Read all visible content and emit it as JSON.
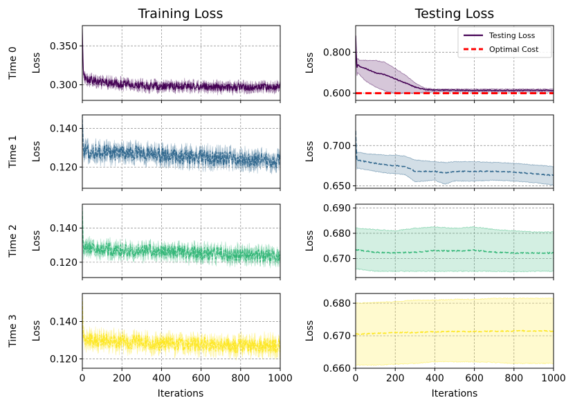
{
  "columns": [
    {
      "title": "Training Loss"
    },
    {
      "title": "Testing Loss"
    }
  ],
  "rows": [
    {
      "label": "Time 0",
      "color": "#440154"
    },
    {
      "label": "Time 1",
      "color": "#31688e"
    },
    {
      "label": "Time 2",
      "color": "#35b779"
    },
    {
      "label": "Time 3",
      "color": "#fde725"
    }
  ],
  "ylabel": "Loss",
  "xlabel": "Iterations",
  "legend": {
    "placement": "top-right",
    "entries": [
      {
        "label": "Testing Loss",
        "color": "#440154",
        "style": "solid"
      },
      {
        "label": "Optimal Cost",
        "color": "#ff0000",
        "style": "dashed"
      }
    ]
  },
  "chart_data": [
    {
      "type": "line",
      "panel": "train-0",
      "row": 0,
      "col": 0,
      "xlim": [
        0,
        1000
      ],
      "ylim": [
        0.28,
        0.376
      ],
      "yticks": [
        0.3,
        0.35
      ],
      "ytick_labels": [
        "0.300",
        "0.350"
      ],
      "xticks": [
        0,
        200,
        400,
        600,
        800,
        1000
      ],
      "xtick_labels": [],
      "grid": true,
      "series": [
        {
          "x": [
            0,
            5,
            10,
            30,
            60,
            100,
            200,
            300,
            400,
            500,
            600,
            700,
            800,
            900,
            1000
          ],
          "y": [
            0.37,
            0.32,
            0.31,
            0.307,
            0.305,
            0.303,
            0.301,
            0.299,
            0.298,
            0.298,
            0.298,
            0.297,
            0.297,
            0.297,
            0.297
          ],
          "band": 0.006,
          "noise": 0.005
        }
      ]
    },
    {
      "type": "line",
      "panel": "test-0",
      "row": 0,
      "col": 1,
      "xlim": [
        0,
        1000
      ],
      "ylim": [
        0.565,
        0.93
      ],
      "yticks": [
        0.6,
        0.8
      ],
      "ytick_labels": [
        "0.600",
        "0.800"
      ],
      "xticks": [
        0,
        200,
        400,
        600,
        800,
        1000
      ],
      "xtick_labels": [],
      "grid": true,
      "optimal_cost": 0.6,
      "series": [
        {
          "name": "Testing Loss",
          "x": [
            0,
            5,
            10,
            20,
            50,
            100,
            150,
            200,
            250,
            300,
            350,
            400,
            500,
            600,
            700,
            800,
            900,
            1000
          ],
          "y": [
            0.88,
            0.72,
            0.74,
            0.73,
            0.72,
            0.7,
            0.69,
            0.67,
            0.65,
            0.63,
            0.618,
            0.615,
            0.615,
            0.614,
            0.614,
            0.614,
            0.614,
            0.614
          ],
          "lower": [
            0.88,
            0.68,
            0.7,
            0.69,
            0.66,
            0.63,
            0.61,
            0.6,
            0.6,
            0.6,
            0.605,
            0.607,
            0.607,
            0.607,
            0.607,
            0.607,
            0.607,
            0.607
          ],
          "upper": [
            0.88,
            0.76,
            0.77,
            0.76,
            0.76,
            0.76,
            0.75,
            0.72,
            0.69,
            0.65,
            0.625,
            0.62,
            0.62,
            0.62,
            0.62,
            0.62,
            0.62,
            0.62
          ],
          "noise": 0.004
        }
      ]
    },
    {
      "type": "line",
      "panel": "train-1",
      "row": 1,
      "col": 0,
      "xlim": [
        0,
        1000
      ],
      "ylim": [
        0.109,
        0.147
      ],
      "yticks": [
        0.12,
        0.14
      ],
      "ytick_labels": [
        "0.120",
        "0.140"
      ],
      "xticks": [
        0,
        200,
        400,
        600,
        800,
        1000
      ],
      "xtick_labels": [],
      "grid": true,
      "series": [
        {
          "x": [
            0,
            5,
            100,
            200,
            300,
            400,
            500,
            600,
            700,
            800,
            900,
            1000
          ],
          "y": [
            0.145,
            0.128,
            0.128,
            0.127,
            0.127,
            0.126,
            0.125,
            0.125,
            0.124,
            0.124,
            0.124,
            0.123
          ],
          "band": 0.004,
          "noise": 0.004
        }
      ]
    },
    {
      "type": "line",
      "panel": "test-1",
      "row": 1,
      "col": 1,
      "xlim": [
        0,
        1000
      ],
      "ylim": [
        0.647,
        0.738
      ],
      "yticks": [
        0.65,
        0.7
      ],
      "ytick_labels": [
        "0.650",
        "0.700"
      ],
      "xticks": [
        0,
        200,
        400,
        600,
        800,
        1000
      ],
      "xtick_labels": [],
      "grid": true,
      "series": [
        {
          "x": [
            0,
            5,
            10,
            50,
            100,
            150,
            200,
            250,
            300,
            400,
            450,
            500,
            600,
            700,
            800,
            900,
            1000
          ],
          "y": [
            0.718,
            0.68,
            0.682,
            0.68,
            0.678,
            0.676,
            0.675,
            0.674,
            0.668,
            0.668,
            0.666,
            0.668,
            0.668,
            0.668,
            0.667,
            0.665,
            0.663
          ],
          "lower": [
            0.718,
            0.67,
            0.672,
            0.67,
            0.668,
            0.666,
            0.665,
            0.664,
            0.655,
            0.657,
            0.652,
            0.656,
            0.656,
            0.657,
            0.656,
            0.654,
            0.651
          ],
          "upper": [
            0.718,
            0.69,
            0.692,
            0.69,
            0.689,
            0.688,
            0.688,
            0.687,
            0.682,
            0.68,
            0.679,
            0.68,
            0.68,
            0.679,
            0.678,
            0.676,
            0.674
          ],
          "noise": 0.001
        }
      ]
    },
    {
      "type": "line",
      "panel": "train-2",
      "row": 2,
      "col": 0,
      "xlim": [
        0,
        1000
      ],
      "ylim": [
        0.111,
        0.154
      ],
      "yticks": [
        0.12,
        0.14
      ],
      "ytick_labels": [
        "0.120",
        "0.140"
      ],
      "xticks": [
        0,
        200,
        400,
        600,
        800,
        1000
      ],
      "xtick_labels": [],
      "grid": true,
      "series": [
        {
          "x": [
            0,
            5,
            100,
            200,
            300,
            400,
            500,
            600,
            700,
            800,
            900,
            1000
          ],
          "y": [
            0.15,
            0.128,
            0.128,
            0.127,
            0.127,
            0.126,
            0.126,
            0.125,
            0.125,
            0.124,
            0.124,
            0.124
          ],
          "band": 0.004,
          "noise": 0.004
        }
      ]
    },
    {
      "type": "line",
      "panel": "test-2",
      "row": 2,
      "col": 1,
      "xlim": [
        0,
        1000
      ],
      "ylim": [
        0.6625,
        0.6915
      ],
      "yticks": [
        0.67,
        0.68,
        0.69
      ],
      "ytick_labels": [
        "0.670",
        "0.680",
        "0.690"
      ],
      "xticks": [
        0,
        200,
        400,
        600,
        800,
        1000
      ],
      "xtick_labels": [],
      "grid": true,
      "series": [
        {
          "x": [
            0,
            100,
            200,
            300,
            400,
            500,
            600,
            700,
            800,
            900,
            1000
          ],
          "y": [
            0.6735,
            0.6725,
            0.6723,
            0.6725,
            0.6732,
            0.673,
            0.6733,
            0.6725,
            0.6722,
            0.6722,
            0.6722
          ],
          "lower": [
            0.666,
            0.665,
            0.665,
            0.665,
            0.665,
            0.665,
            0.665,
            0.665,
            0.6648,
            0.665,
            0.665
          ],
          "upper": [
            0.682,
            0.6815,
            0.681,
            0.682,
            0.6825,
            0.682,
            0.6825,
            0.6815,
            0.681,
            0.6805,
            0.6805
          ],
          "noise": 0.0004
        }
      ]
    },
    {
      "type": "line",
      "panel": "train-3",
      "row": 3,
      "col": 0,
      "xlim": [
        0,
        1000
      ],
      "ylim": [
        0.115,
        0.155
      ],
      "yticks": [
        0.12,
        0.14
      ],
      "ytick_labels": [
        "0.120",
        "0.140"
      ],
      "xticks": [
        0,
        200,
        400,
        600,
        800,
        1000
      ],
      "xtick_labels": [
        "0",
        "200",
        "400",
        "600",
        "800",
        "1000"
      ],
      "grid": true,
      "series": [
        {
          "x": [
            0,
            5,
            100,
            200,
            300,
            400,
            500,
            600,
            700,
            800,
            900,
            1000
          ],
          "y": [
            0.15,
            0.13,
            0.13,
            0.129,
            0.129,
            0.128,
            0.128,
            0.128,
            0.127,
            0.127,
            0.127,
            0.127
          ],
          "band": 0.004,
          "noise": 0.004
        }
      ]
    },
    {
      "type": "line",
      "panel": "test-3",
      "row": 3,
      "col": 1,
      "xlim": [
        0,
        1000
      ],
      "ylim": [
        0.66,
        0.683
      ],
      "yticks": [
        0.66,
        0.67,
        0.68
      ],
      "ytick_labels": [
        "0.660",
        "0.670",
        "0.680"
      ],
      "xticks": [
        0,
        200,
        400,
        600,
        800,
        1000
      ],
      "xtick_labels": [
        "0",
        "200",
        "400",
        "600",
        "800",
        "1000"
      ],
      "grid": true,
      "series": [
        {
          "x": [
            0,
            100,
            200,
            300,
            400,
            500,
            600,
            700,
            800,
            900,
            1000
          ],
          "y": [
            0.6705,
            0.6707,
            0.671,
            0.671,
            0.6712,
            0.6713,
            0.6713,
            0.6714,
            0.6715,
            0.6715,
            0.6714
          ],
          "lower": [
            0.661,
            0.661,
            0.6612,
            0.6615,
            0.662,
            0.662,
            0.662,
            0.6618,
            0.6615,
            0.6615,
            0.6615
          ],
          "upper": [
            0.68,
            0.6802,
            0.6805,
            0.681,
            0.681,
            0.6812,
            0.6812,
            0.6815,
            0.6815,
            0.6815,
            0.6815
          ],
          "noise": 0.0003
        }
      ]
    }
  ]
}
